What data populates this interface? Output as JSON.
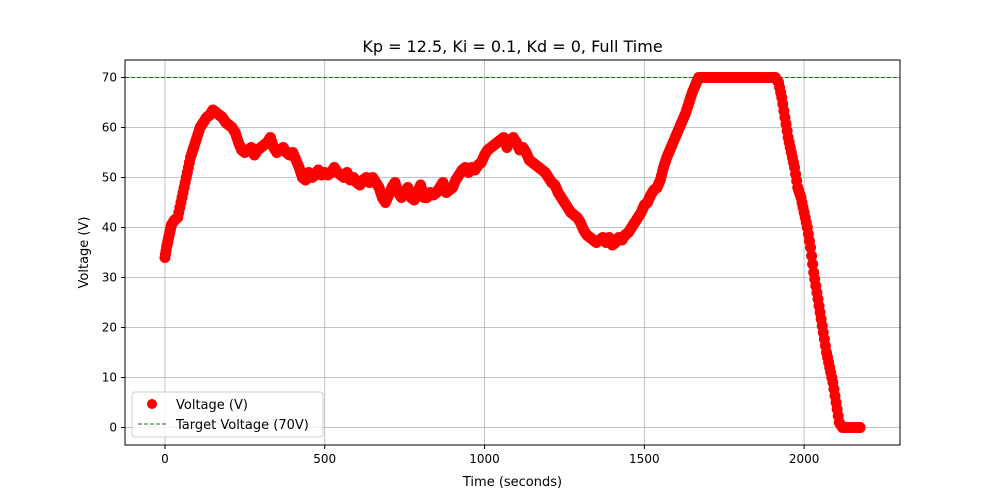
{
  "chart_data": {
    "type": "scatter",
    "title": "Kp = 12.5, Ki = 0.1, Kd = 0, Full Time",
    "xlabel": "Time (seconds)",
    "ylabel": "Voltage (V)",
    "xlim": [
      -125,
      2300
    ],
    "ylim": [
      -3.5,
      73.5
    ],
    "x_ticks": [
      0,
      500,
      1000,
      1500,
      2000
    ],
    "y_ticks": [
      0,
      10,
      20,
      30,
      40,
      50,
      60,
      70
    ],
    "grid": true,
    "legend_position": "lower-left",
    "series": [
      {
        "name": "Voltage (V)",
        "kind": "scatter",
        "color": "#ff0000",
        "points": [
          [
            0,
            34
          ],
          [
            5,
            36
          ],
          [
            10,
            37.5
          ],
          [
            15,
            39
          ],
          [
            20,
            40.5
          ],
          [
            30,
            41.5
          ],
          [
            40,
            42
          ],
          [
            50,
            45
          ],
          [
            60,
            48
          ],
          [
            70,
            51
          ],
          [
            80,
            54
          ],
          [
            90,
            56
          ],
          [
            100,
            58
          ],
          [
            110,
            60
          ],
          [
            120,
            61
          ],
          [
            130,
            62
          ],
          [
            140,
            62.5
          ],
          [
            150,
            63.5
          ],
          [
            160,
            63
          ],
          [
            170,
            62.5
          ],
          [
            180,
            62
          ],
          [
            190,
            61
          ],
          [
            200,
            60.5
          ],
          [
            210,
            60
          ],
          [
            220,
            59
          ],
          [
            230,
            57
          ],
          [
            240,
            55.5
          ],
          [
            250,
            55
          ],
          [
            260,
            55.5
          ],
          [
            270,
            56
          ],
          [
            280,
            54.5
          ],
          [
            290,
            55.5
          ],
          [
            300,
            56
          ],
          [
            310,
            56.5
          ],
          [
            320,
            57
          ],
          [
            330,
            58
          ],
          [
            340,
            56
          ],
          [
            350,
            55
          ],
          [
            360,
            55.5
          ],
          [
            370,
            56
          ],
          [
            380,
            55
          ],
          [
            390,
            54.5
          ],
          [
            400,
            55
          ],
          [
            410,
            53.5
          ],
          [
            420,
            52
          ],
          [
            430,
            50
          ],
          [
            440,
            49.5
          ],
          [
            450,
            51
          ],
          [
            460,
            50
          ],
          [
            470,
            50.5
          ],
          [
            480,
            51.5
          ],
          [
            490,
            50.5
          ],
          [
            500,
            51
          ],
          [
            510,
            50.5
          ],
          [
            520,
            51
          ],
          [
            530,
            52
          ],
          [
            540,
            51
          ],
          [
            550,
            50.5
          ],
          [
            560,
            50
          ],
          [
            570,
            51
          ],
          [
            580,
            49.5
          ],
          [
            590,
            50
          ],
          [
            600,
            49
          ],
          [
            610,
            48.5
          ],
          [
            620,
            49.5
          ],
          [
            630,
            50
          ],
          [
            640,
            49
          ],
          [
            650,
            50
          ],
          [
            660,
            49
          ],
          [
            670,
            48
          ],
          [
            680,
            46
          ],
          [
            690,
            45
          ],
          [
            700,
            46.5
          ],
          [
            710,
            48
          ],
          [
            720,
            49
          ],
          [
            730,
            47
          ],
          [
            740,
            46
          ],
          [
            750,
            47
          ],
          [
            760,
            48
          ],
          [
            770,
            46
          ],
          [
            780,
            45.5
          ],
          [
            790,
            47
          ],
          [
            800,
            48.5
          ],
          [
            810,
            46
          ],
          [
            820,
            46
          ],
          [
            830,
            47
          ],
          [
            840,
            46.5
          ],
          [
            850,
            47
          ],
          [
            860,
            48
          ],
          [
            870,
            49
          ],
          [
            880,
            47
          ],
          [
            890,
            47.5
          ],
          [
            900,
            48
          ],
          [
            910,
            49.5
          ],
          [
            920,
            50.5
          ],
          [
            930,
            51.5
          ],
          [
            940,
            52
          ],
          [
            950,
            51
          ],
          [
            960,
            52
          ],
          [
            970,
            51.5
          ],
          [
            980,
            52.5
          ],
          [
            990,
            53
          ],
          [
            1000,
            54.5
          ],
          [
            1010,
            55.5
          ],
          [
            1020,
            56
          ],
          [
            1030,
            56.5
          ],
          [
            1040,
            57
          ],
          [
            1050,
            57.5
          ],
          [
            1060,
            58
          ],
          [
            1070,
            56
          ],
          [
            1080,
            57.5
          ],
          [
            1090,
            58
          ],
          [
            1100,
            57
          ],
          [
            1110,
            55.5
          ],
          [
            1120,
            56
          ],
          [
            1130,
            55
          ],
          [
            1140,
            53.5
          ],
          [
            1150,
            53
          ],
          [
            1160,
            52.5
          ],
          [
            1170,
            52
          ],
          [
            1180,
            51.5
          ],
          [
            1190,
            51
          ],
          [
            1200,
            50
          ],
          [
            1210,
            49
          ],
          [
            1220,
            48.5
          ],
          [
            1230,
            47
          ],
          [
            1240,
            46
          ],
          [
            1250,
            45
          ],
          [
            1260,
            44
          ],
          [
            1270,
            43
          ],
          [
            1280,
            42.5
          ],
          [
            1290,
            42
          ],
          [
            1300,
            41
          ],
          [
            1310,
            39.5
          ],
          [
            1320,
            38.5
          ],
          [
            1330,
            38
          ],
          [
            1340,
            37.5
          ],
          [
            1350,
            37
          ],
          [
            1360,
            37.5
          ],
          [
            1370,
            38
          ],
          [
            1380,
            37
          ],
          [
            1390,
            38
          ],
          [
            1400,
            36.5
          ],
          [
            1410,
            37
          ],
          [
            1420,
            38
          ],
          [
            1430,
            37.5
          ],
          [
            1440,
            38.5
          ],
          [
            1450,
            39
          ],
          [
            1460,
            40
          ],
          [
            1470,
            41
          ],
          [
            1480,
            42
          ],
          [
            1490,
            43
          ],
          [
            1500,
            44.5
          ],
          [
            1510,
            45
          ],
          [
            1520,
            46.5
          ],
          [
            1530,
            47.5
          ],
          [
            1540,
            48
          ],
          [
            1550,
            49.5
          ],
          [
            1560,
            52
          ],
          [
            1570,
            54
          ],
          [
            1580,
            55.5
          ],
          [
            1590,
            57
          ],
          [
            1600,
            58.5
          ],
          [
            1610,
            60
          ],
          [
            1620,
            61.5
          ],
          [
            1630,
            63
          ],
          [
            1640,
            65
          ],
          [
            1650,
            67
          ],
          [
            1660,
            68.5
          ],
          [
            1670,
            70
          ],
          [
            1680,
            70
          ],
          [
            1700,
            70
          ],
          [
            1720,
            70
          ],
          [
            1740,
            70
          ],
          [
            1760,
            70
          ],
          [
            1780,
            70
          ],
          [
            1800,
            70
          ],
          [
            1820,
            70
          ],
          [
            1840,
            70
          ],
          [
            1860,
            70
          ],
          [
            1880,
            70
          ],
          [
            1900,
            70
          ],
          [
            1910,
            70
          ],
          [
            1920,
            69
          ],
          [
            1930,
            66
          ],
          [
            1940,
            62
          ],
          [
            1950,
            58
          ],
          [
            1960,
            55
          ],
          [
            1970,
            52
          ],
          [
            1980,
            48
          ],
          [
            1990,
            46
          ],
          [
            2000,
            43
          ],
          [
            2010,
            40
          ],
          [
            2020,
            36
          ],
          [
            2030,
            31
          ],
          [
            2040,
            27
          ],
          [
            2050,
            23
          ],
          [
            2060,
            19
          ],
          [
            2070,
            15
          ],
          [
            2080,
            12
          ],
          [
            2090,
            9
          ],
          [
            2100,
            5
          ],
          [
            2110,
            1
          ],
          [
            2120,
            0
          ],
          [
            2140,
            0
          ],
          [
            2160,
            0
          ],
          [
            2175,
            0
          ]
        ]
      },
      {
        "name": "Target Voltage (70V)",
        "kind": "hline",
        "y": 70,
        "color": "#008000",
        "linestyle": "dashed"
      }
    ]
  }
}
